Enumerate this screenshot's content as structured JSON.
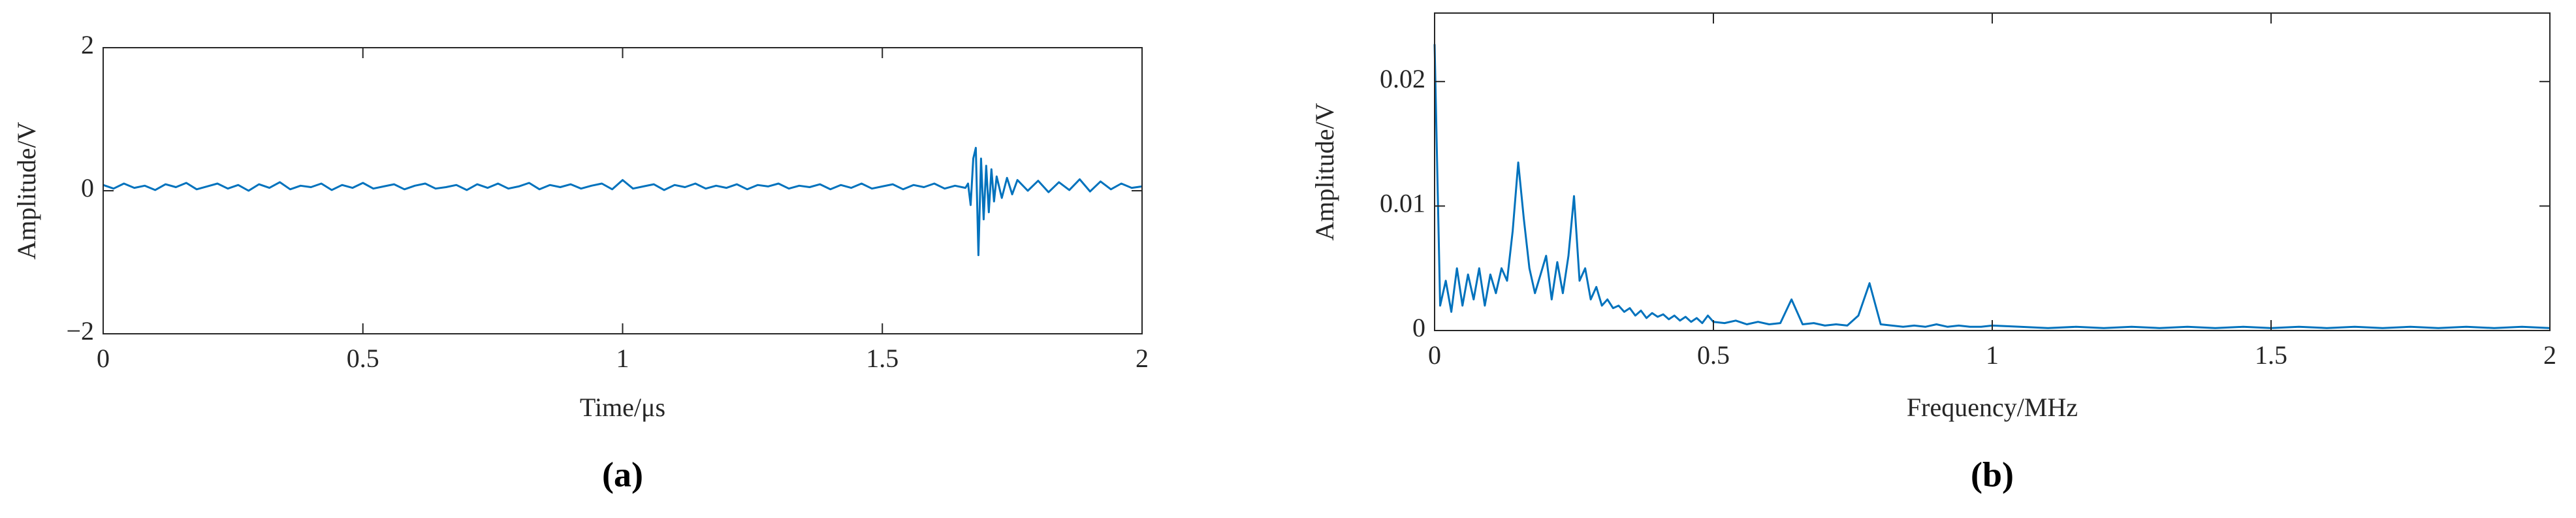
{
  "chart_data": [
    {
      "type": "line",
      "caption": "(a)",
      "xlabel": "Time/μs",
      "ylabel": "Amplitude/V",
      "color": "#0072bd",
      "xlim": [
        0,
        2
      ],
      "xticks": [
        0,
        0.5,
        1,
        1.5,
        2
      ],
      "ylim": [
        -2,
        2
      ],
      "yticks": [
        {
          "value": -2,
          "label": "−2"
        },
        0,
        2
      ],
      "x": [
        0,
        0.02,
        0.04,
        0.06,
        0.08,
        0.1,
        0.12,
        0.14,
        0.16,
        0.18,
        0.2,
        0.22,
        0.24,
        0.26,
        0.28,
        0.3,
        0.32,
        0.34,
        0.36,
        0.38,
        0.4,
        0.42,
        0.44,
        0.46,
        0.48,
        0.5,
        0.52,
        0.54,
        0.56,
        0.58,
        0.6,
        0.62,
        0.64,
        0.66,
        0.68,
        0.7,
        0.72,
        0.74,
        0.76,
        0.78,
        0.8,
        0.82,
        0.84,
        0.86,
        0.88,
        0.9,
        0.92,
        0.94,
        0.96,
        0.98,
        1.0,
        1.02,
        1.04,
        1.06,
        1.08,
        1.1,
        1.12,
        1.14,
        1.16,
        1.18,
        1.2,
        1.22,
        1.24,
        1.26,
        1.28,
        1.3,
        1.32,
        1.34,
        1.36,
        1.38,
        1.4,
        1.42,
        1.44,
        1.46,
        1.48,
        1.5,
        1.52,
        1.54,
        1.56,
        1.58,
        1.6,
        1.62,
        1.64,
        1.66,
        1.665,
        1.67,
        1.675,
        1.68,
        1.685,
        1.69,
        1.695,
        1.7,
        1.705,
        1.71,
        1.715,
        1.72,
        1.73,
        1.74,
        1.75,
        1.76,
        1.78,
        1.8,
        1.82,
        1.84,
        1.86,
        1.88,
        1.9,
        1.92,
        1.94,
        1.96,
        1.98,
        2.0
      ],
      "values": [
        0.08,
        0.03,
        0.1,
        0.04,
        0.07,
        0.01,
        0.09,
        0.05,
        0.11,
        0.02,
        0.06,
        0.1,
        0.03,
        0.08,
        0.0,
        0.09,
        0.04,
        0.12,
        0.02,
        0.07,
        0.05,
        0.1,
        0.01,
        0.08,
        0.04,
        0.11,
        0.03,
        0.06,
        0.09,
        0.02,
        0.07,
        0.1,
        0.03,
        0.05,
        0.08,
        0.01,
        0.09,
        0.04,
        0.1,
        0.03,
        0.06,
        0.11,
        0.02,
        0.08,
        0.05,
        0.09,
        0.03,
        0.07,
        0.1,
        0.02,
        0.15,
        0.03,
        0.06,
        0.09,
        0.01,
        0.08,
        0.05,
        0.1,
        0.03,
        0.07,
        0.04,
        0.09,
        0.02,
        0.08,
        0.06,
        0.1,
        0.03,
        0.07,
        0.05,
        0.09,
        0.02,
        0.08,
        0.04,
        0.1,
        0.03,
        0.06,
        0.09,
        0.02,
        0.08,
        0.05,
        0.1,
        0.03,
        0.07,
        0.04,
        0.1,
        -0.2,
        0.45,
        0.6,
        -0.9,
        0.45,
        -0.4,
        0.35,
        -0.3,
        0.3,
        -0.15,
        0.2,
        -0.1,
        0.18,
        -0.05,
        0.15,
        0.0,
        0.14,
        -0.02,
        0.12,
        0.01,
        0.16,
        -0.01,
        0.13,
        0.02,
        0.1,
        0.04,
        0.06
      ]
    },
    {
      "type": "line",
      "caption": "(b)",
      "xlabel": "Frequency/MHz",
      "ylabel": "Amplitude/V",
      "color": "#0072bd",
      "xlim": [
        0,
        2
      ],
      "xticks": [
        0,
        0.5,
        1,
        1.5,
        2
      ],
      "ylim": [
        0,
        0.0255
      ],
      "yticks": [
        0,
        0.01,
        0.02
      ],
      "x": [
        0,
        0.01,
        0.02,
        0.03,
        0.04,
        0.05,
        0.06,
        0.07,
        0.08,
        0.09,
        0.1,
        0.11,
        0.12,
        0.13,
        0.14,
        0.15,
        0.16,
        0.17,
        0.18,
        0.19,
        0.2,
        0.21,
        0.22,
        0.23,
        0.24,
        0.25,
        0.26,
        0.27,
        0.28,
        0.29,
        0.3,
        0.31,
        0.32,
        0.33,
        0.34,
        0.35,
        0.36,
        0.37,
        0.38,
        0.39,
        0.4,
        0.41,
        0.42,
        0.43,
        0.44,
        0.45,
        0.46,
        0.47,
        0.48,
        0.49,
        0.5,
        0.52,
        0.54,
        0.56,
        0.58,
        0.6,
        0.62,
        0.64,
        0.66,
        0.68,
        0.7,
        0.72,
        0.74,
        0.76,
        0.78,
        0.8,
        0.82,
        0.84,
        0.86,
        0.88,
        0.9,
        0.92,
        0.94,
        0.96,
        0.98,
        1.0,
        1.05,
        1.1,
        1.15,
        1.2,
        1.25,
        1.3,
        1.35,
        1.4,
        1.45,
        1.5,
        1.55,
        1.6,
        1.65,
        1.7,
        1.75,
        1.8,
        1.85,
        1.9,
        1.95,
        2.0
      ],
      "values": [
        0.023,
        0.002,
        0.004,
        0.0015,
        0.005,
        0.002,
        0.0045,
        0.0025,
        0.005,
        0.002,
        0.0045,
        0.003,
        0.005,
        0.004,
        0.008,
        0.0135,
        0.009,
        0.005,
        0.003,
        0.0045,
        0.006,
        0.0025,
        0.0055,
        0.003,
        0.006,
        0.0108,
        0.004,
        0.005,
        0.0025,
        0.0035,
        0.002,
        0.0025,
        0.0018,
        0.002,
        0.0015,
        0.0018,
        0.0012,
        0.0016,
        0.001,
        0.0014,
        0.0011,
        0.0013,
        0.0009,
        0.0012,
        0.0008,
        0.0011,
        0.0007,
        0.001,
        0.0006,
        0.0012,
        0.0007,
        0.0006,
        0.0008,
        0.0005,
        0.0007,
        0.0005,
        0.0006,
        0.0025,
        0.0005,
        0.0006,
        0.0004,
        0.0005,
        0.0004,
        0.0012,
        0.0038,
        0.0005,
        0.0004,
        0.0003,
        0.0004,
        0.0003,
        0.0005,
        0.0003,
        0.0004,
        0.0003,
        0.0003,
        0.0004,
        0.0003,
        0.0002,
        0.0003,
        0.0002,
        0.0003,
        0.0002,
        0.0003,
        0.0002,
        0.0003,
        0.0002,
        0.0003,
        0.0002,
        0.0003,
        0.0002,
        0.0003,
        0.0002,
        0.0003,
        0.0002,
        0.0003,
        0.0002
      ]
    }
  ]
}
